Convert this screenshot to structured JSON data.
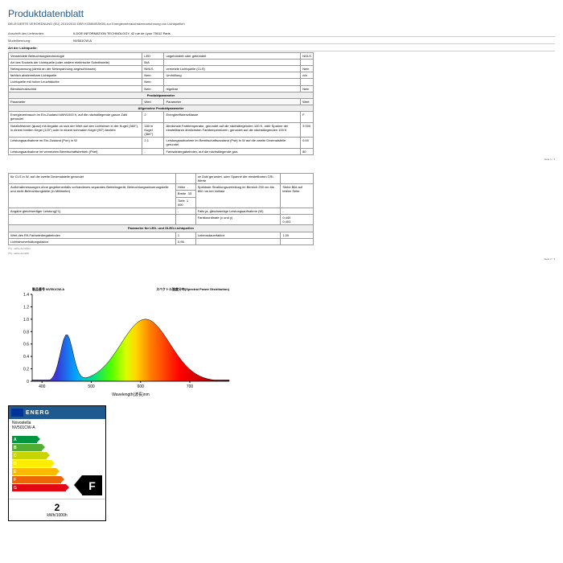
{
  "doc": {
    "title": "Produktdatenblatt",
    "subtitle": "DELEGIERTE VERORDNUNG (EU) 2019/2015 DER KOMMISSION zur Energieverbrauchskennzeichnung von Lichtquellen",
    "supplier_label": "Anschrift des Lieferanten:",
    "supplier": "ILDOE INFORMATION TECHNOLOGY, 42 rue de Lyon 75012 Paris",
    "model_label": "Modellkennung:",
    "model": "NV501CW-A",
    "section_light": "Art der Lichtquelle:"
  },
  "t1": {
    "r1": {
      "a": "Verwendete Beleuchtungstechnologie",
      "b": "LED",
      "c": "ungebündelt oder gebündelt",
      "d": "NGLS"
    },
    "r2": {
      "a": "Art des Sockels der Lichtquelle (oder andere elektrische Schnittstelle)",
      "b": "B/A",
      "c": "",
      "d": ""
    },
    "r3": {
      "a": "Netzspannung (direkt an der Netzspannung angeschlossen)",
      "b": "NMLS",
      "c": "vernetzte Lichtquelle (CLS)",
      "d": "Nein"
    },
    "r4": {
      "a": "farblich abstimmbare Lichtquelle",
      "b": "Nein",
      "c": "Umhüllung",
      "d": "n/a"
    },
    "r5": {
      "a": "Lichtquelle mit hoher Leuchtdichte",
      "b": "Nein",
      "c": "",
      "d": ""
    },
    "r6": {
      "a": "Blendschutzschild",
      "b": "Nein",
      "c": "regelbar",
      "d": "Nein"
    }
  },
  "hdr1": "Produktparameter",
  "h1": {
    "a": "Parameter",
    "b": "Wert",
    "c": "Parameter",
    "d": "Wert"
  },
  "hdr2": "Allgemeine Produktparameter",
  "t2": {
    "r1": {
      "a": "Energieverbrauch im Ein-Zustand kWh/1000 h, auf die nächstliegende ganze Zahl gerundet",
      "b": "2",
      "c": "Energieeffizienzklasse",
      "d": "F"
    },
    "r2": {
      "a": "Nutzlichtstrom (φuse) mit Angabe ob sich der Wert auf den Lichtstrom in der Kugel (360°), in einem breiten Kegel (120°) oder in einem schmalen Kegel (90°) bezieht",
      "b": "180 in Kugel (360°)",
      "c": "Ähnlichste Farbtemperatur, gerundet auf die nächstliegenden 100 K, oder Spanne der einstellbaren ähnlichsten Farbtemperaturen, gerundet auf die nächstliegenden 100 K",
      "d": "3 000"
    },
    "r3": {
      "a": "Leistungsaufnahme im Ein-Zustand (Pon) in W",
      "b": "2,1",
      "c": "Leistungsaufnahme im Bereitschaftszustand (Psb) in W auf die zweite Dezimalstelle gerundet",
      "d": "0.00"
    },
    "r4": {
      "a": "Leistungsaufnahme im vernetzten Bereitschaftsbetrieb (Pnet)",
      "b": "-",
      "c": "Farbwiedergabeindex, auf die nächstliegende gan-",
      "d": "80"
    }
  },
  "pn1": "Seite 1 / 3",
  "t3": {
    "r1": {
      "a": "für CLS in W, auf die zweite Dezimalstelle gerundet",
      "b": "",
      "c": "ze Zahl gerundet, oder Spanne der einstellbaren CRI-Werte",
      "d": ""
    },
    "r2": {
      "a": "Außenabmessungen ohne gegebenenfalls vorhandenes separates Betriebsgerät, Beleuchtungssteuerungsteile und nicht-Beleuchtungsteile (in Millimeter)",
      "b1": "Höhe",
      "b2": "-",
      "b3": "Breite",
      "b4": "33",
      "b5": "Tiefe",
      "b6": "1 000",
      "c": "Spektrale Strahlungsverteilung im Bereich 250 nm bis 800 nm bei Volllast",
      "d": "Siehe Bild auf letzter Seite"
    },
    "r3": {
      "a": "Angabe gleichwertiger Leistung(*1)",
      "b": "-",
      "c": "Falls ja, gleichwertige Leistungsaufnahme (W)",
      "d": "-"
    },
    "r4": {
      "a": "",
      "b": "",
      "c": "Farbkoordinate (x und y)",
      "d": "0,440\n0,403"
    }
  },
  "hdr3": "Parameter für LED- und OLED-Lichtquellen",
  "t4": {
    "r1": {
      "a": "Wert des R9-Farbwiedergabeindex",
      "b": "1",
      "c": "Lebensdauerfaktor",
      "d": "1,00"
    },
    "r2": {
      "a": "Lichtstromerhaltungsfaktor",
      "b": "0,96",
      "c": "",
      "d": ""
    }
  },
  "fn1": "(*1) - siehe Anm(Z)m",
  "fn2": "(*2) - siehe Anm(M)",
  "pn2": "Seite 2 / 3",
  "chart": {
    "title_left": "製品番号 NV501CW-A",
    "title_right": "スペクトル強度分布(Spectral Power Distribution)",
    "xlabel": "Wavelength(波長)nm",
    "ylim": [
      0,
      1.4
    ],
    "xlim": [
      380,
      780
    ],
    "yticks": [
      "0",
      "0.2",
      "0.4",
      "0.6",
      "0.8",
      "1.0",
      "1.2",
      "1.4"
    ],
    "xticks": [
      "400",
      "500",
      "600",
      "700"
    ],
    "peak1_x": 450,
    "peak1_y": 0.75,
    "peak2_x": 610,
    "peak2_y": 1.0,
    "bg_stops": [
      {
        "x": 380,
        "c": "#6b3fa0"
      },
      {
        "x": 430,
        "c": "#3838d8"
      },
      {
        "x": 470,
        "c": "#00a8ff"
      },
      {
        "x": 500,
        "c": "#00d890"
      },
      {
        "x": 540,
        "c": "#4dff00"
      },
      {
        "x": 570,
        "c": "#d8ff00"
      },
      {
        "x": 590,
        "c": "#ffd800"
      },
      {
        "x": 620,
        "c": "#ff8000"
      },
      {
        "x": 680,
        "c": "#ff0000"
      },
      {
        "x": 780,
        "c": "#880000"
      }
    ]
  },
  "energy": {
    "title": "ENERG",
    "brand": "Novostella",
    "model": "NV501CW-A",
    "classes": [
      "A",
      "B",
      "C",
      "D",
      "E",
      "F",
      "G"
    ],
    "rating": "F",
    "kwh": "2",
    "unit": "kWh/1000h"
  }
}
